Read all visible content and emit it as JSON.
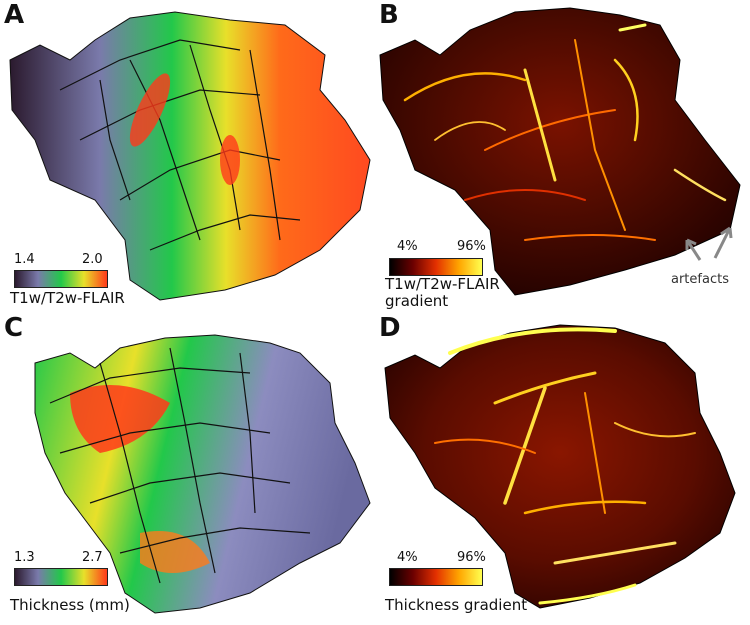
{
  "panels": [
    {
      "letter": "A",
      "colorbar": {
        "min": "1.4",
        "max": "2.0",
        "label": "T1w/T2w-FLAIR"
      },
      "colormap": "rainbow",
      "colors": [
        "#2b1a2e",
        "#8c8cbf",
        "#22c84a",
        "#f7f02a",
        "#ff3a1a"
      ]
    },
    {
      "letter": "B",
      "colorbar": {
        "min": "4%",
        "max": "96%",
        "label": "T1w/T2w-FLAIR\ngradient"
      },
      "colormap": "hot",
      "colors": [
        "#000000",
        "#6b0000",
        "#e33000",
        "#ffa500",
        "#ffff50"
      ],
      "annotation": "artefacts"
    },
    {
      "letter": "C",
      "colorbar": {
        "min": "1.3",
        "max": "2.7",
        "label": "Thickness (mm)"
      },
      "colormap": "rainbow",
      "colors": [
        "#2b1a2e",
        "#8c8cbf",
        "#22c84a",
        "#f7f02a",
        "#ff3a1a"
      ]
    },
    {
      "letter": "D",
      "colorbar": {
        "min": "4%",
        "max": "96%",
        "label": "Thickness gradient"
      },
      "colormap": "hot",
      "colors": [
        "#000000",
        "#6b0000",
        "#e33000",
        "#ffa500",
        "#ffff50"
      ]
    }
  ]
}
